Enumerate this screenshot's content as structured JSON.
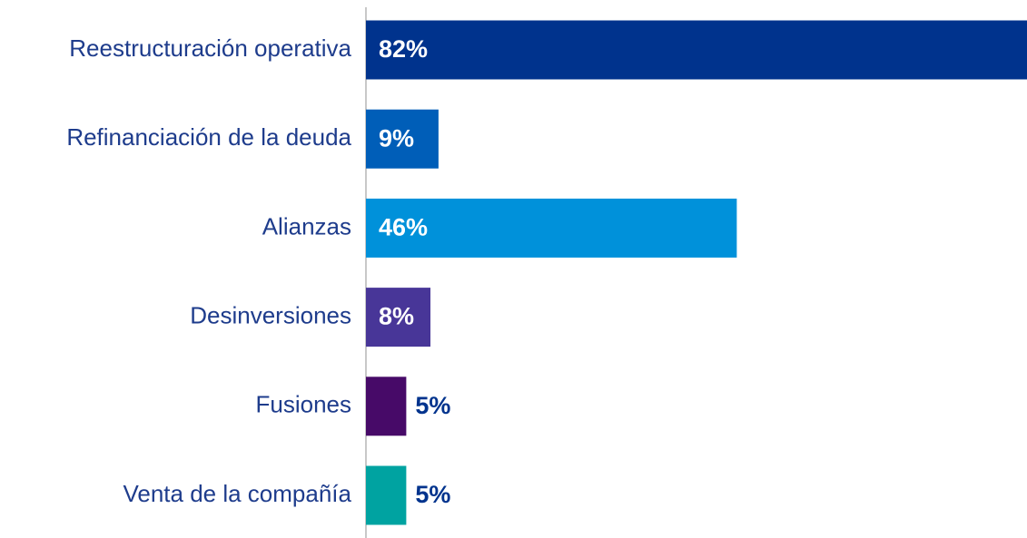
{
  "chart_data": {
    "type": "bar",
    "orientation": "horizontal",
    "categories": [
      "Reestructuración operativa",
      "Refinanciación de la deuda",
      "Alianzas",
      "Desinversiones",
      "Fusiones",
      "Venta de la compañía"
    ],
    "values": [
      82,
      9,
      46,
      8,
      5,
      5
    ],
    "value_labels": [
      "82%",
      "9%",
      "46%",
      "8%",
      "5%",
      "5%"
    ],
    "colors": [
      "#00338d",
      "#005eb8",
      "#0091da",
      "#483698",
      "#470a68",
      "#00a3a1"
    ]
  }
}
